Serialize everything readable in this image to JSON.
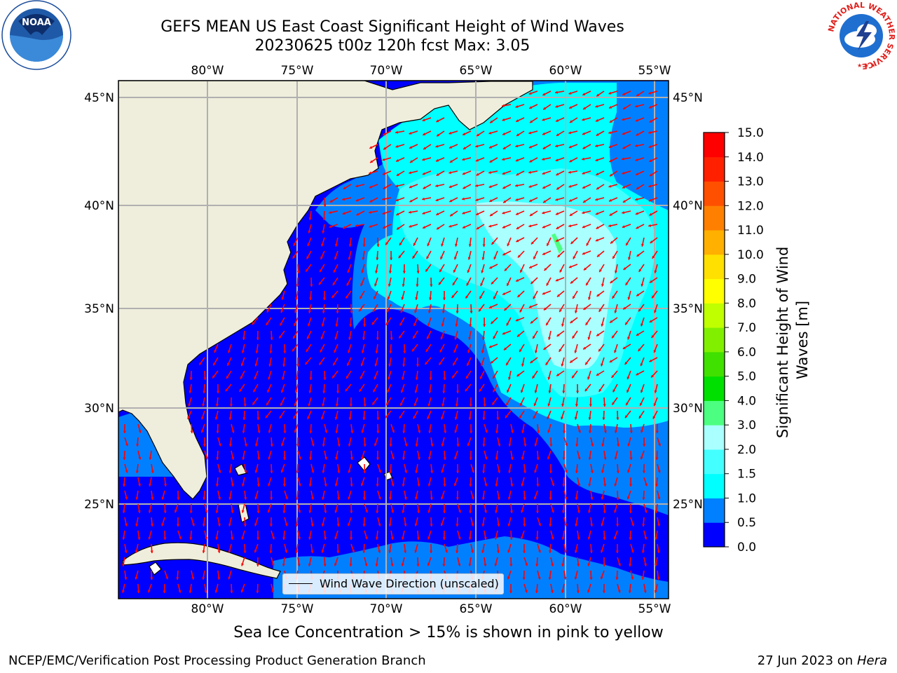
{
  "title_line1": "GEFS MEAN US East Coast Significant Height of Wind Waves",
  "title_line2": "20230625 t00z 120h fcst   Max: 3.05",
  "map": {
    "lon_labels": [
      "80°W",
      "75°W",
      "70°W",
      "65°W",
      "60°W",
      "55°W"
    ],
    "lat_labels": [
      "45°N",
      "40°N",
      "35°N",
      "30°N",
      "25°N"
    ],
    "land_color": "#efeedc",
    "arrow_color": "#ff0000",
    "grid_color": "#b0b0b0"
  },
  "legend": {
    "label": "Wind Wave Direction (unscaled)"
  },
  "colorbar": {
    "label": "Significant Height of Wind Waves [m]",
    "ticks": [
      "0.0",
      "0.5",
      "1.0",
      "1.5",
      "2.0",
      "3.0",
      "4.0",
      "5.0",
      "6.0",
      "7.0",
      "8.0",
      "9.0",
      "10.0",
      "11.0",
      "12.0",
      "13.0",
      "14.0",
      "15.0"
    ],
    "colors": [
      "#0000ff",
      "#0080ff",
      "#00ffff",
      "#44ffff",
      "#aaffff",
      "#4cff80",
      "#00e000",
      "#40e000",
      "#80f000",
      "#c0ff00",
      "#ffff00",
      "#ffe000",
      "#ffb000",
      "#ff8000",
      "#ff5000",
      "#ff2000",
      "#ff0000"
    ]
  },
  "footnote": "Sea Ice Concentration > 15% is shown in pink to yellow",
  "credit": "NCEP/EMC/Verification Post Processing Product Generation Branch",
  "date_text": "27 Jun 2023 on",
  "date_host": "Hera",
  "logos": {
    "left": "NOAA",
    "right_ring": "NATIONAL WEATHER SERVICE"
  }
}
